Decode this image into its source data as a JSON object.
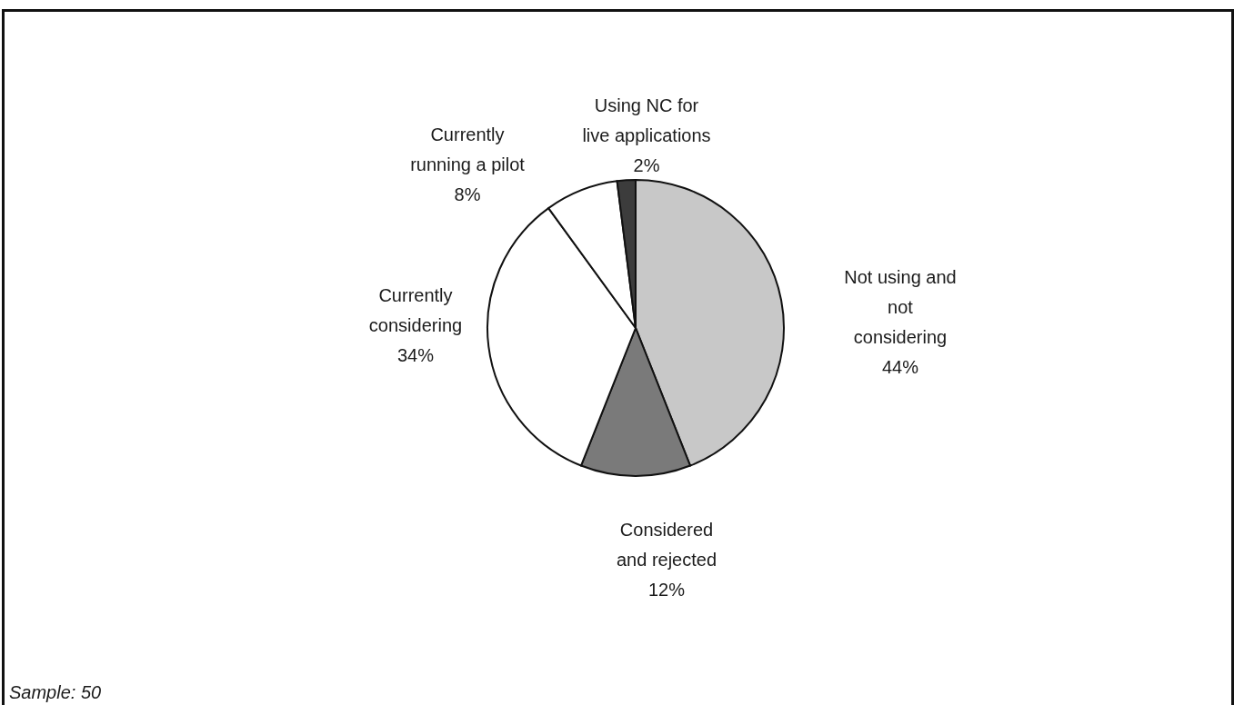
{
  "chart_data": {
    "type": "pie",
    "categories": [
      "Not using and not considering",
      "Considered and rejected",
      "Currently considering",
      "Currently running a pilot",
      "Using NC for live applications"
    ],
    "values": [
      44,
      12,
      34,
      8,
      2
    ],
    "colors": [
      "#c8c8c8",
      "#7a7a7a",
      "#ffffff",
      "#ffffff",
      "#3c3c3c"
    ],
    "value_labels": [
      "44%",
      "12%",
      "34%",
      "8%",
      "2%"
    ],
    "annotations": [
      "Sample: 50"
    ]
  }
}
